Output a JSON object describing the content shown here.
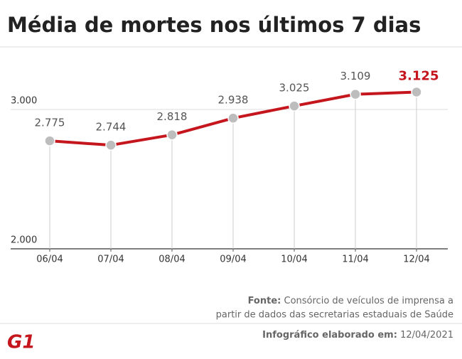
{
  "chart_data": {
    "type": "line",
    "title": "Média de mortes nos últimos 7 dias",
    "categories": [
      "06/04",
      "07/04",
      "08/04",
      "09/04",
      "10/04",
      "11/04",
      "12/04"
    ],
    "values": [
      2775,
      2744,
      2818,
      2938,
      3025,
      3109,
      3125
    ],
    "value_labels": [
      "2.775",
      "2.744",
      "2.818",
      "2.938",
      "3.025",
      "3.109",
      "3.125"
    ],
    "color": "#c4161c",
    "point_color": "#bdbdbd",
    "ylim": [
      2000,
      3400
    ],
    "yticks": [
      {
        "value": 2000,
        "label": "2.000"
      },
      {
        "value": 3000,
        "label": "3.000"
      }
    ],
    "grid": true,
    "source_label": "Fonte:",
    "source_lines": [
      "Consórcio de veículos de imprensa a",
      "partir de dados das secretarias estaduais de Saúde"
    ],
    "footer_label": "Infográfico elaborado em:",
    "footer_date": "12/04/2021",
    "logo": "G1"
  }
}
